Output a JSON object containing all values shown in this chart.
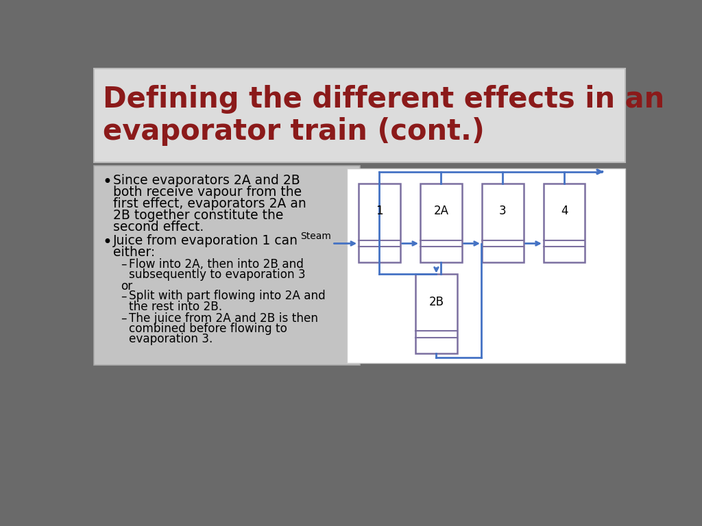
{
  "title_line1": "Defining the different effects in an",
  "title_line2": "evaporator train (cont.)",
  "title_color": "#8B1A1A",
  "bg_color": "#6A6A6A",
  "title_bg": "#DCDCDC",
  "content_bg": "#CBCBCB",
  "diagram_bg": "#FFFFFF",
  "box_color": "#7B6FA0",
  "arrow_color": "#4472C4",
  "steam_label": "Steam",
  "evap_labels": [
    "1",
    "2A",
    "3",
    "4",
    "2B"
  ],
  "bullet1_line1": "Since evaporators 2A and 2B",
  "bullet1_line2": "both receive vapour from the",
  "bullet1_line3": "first effect, evaporators 2A an",
  "bullet1_line4": "2B together constitute the",
  "bullet1_line5": "second effect.",
  "bullet2_line1": "Juice from evaporation 1 can",
  "bullet2_line2": "either:",
  "sub1_line1": "Flow into 2A, then into 2B and",
  "sub1_line2": "subsequently to evaporation 3",
  "or_text": "or",
  "sub2_line1": "Split with part flowing into 2A and",
  "sub2_line2": "the rest into 2B.",
  "sub3_line1": "The juice from 2A and 2B is then",
  "sub3_line2": "combined before flowing to",
  "sub3_line3": "evaporation 3."
}
